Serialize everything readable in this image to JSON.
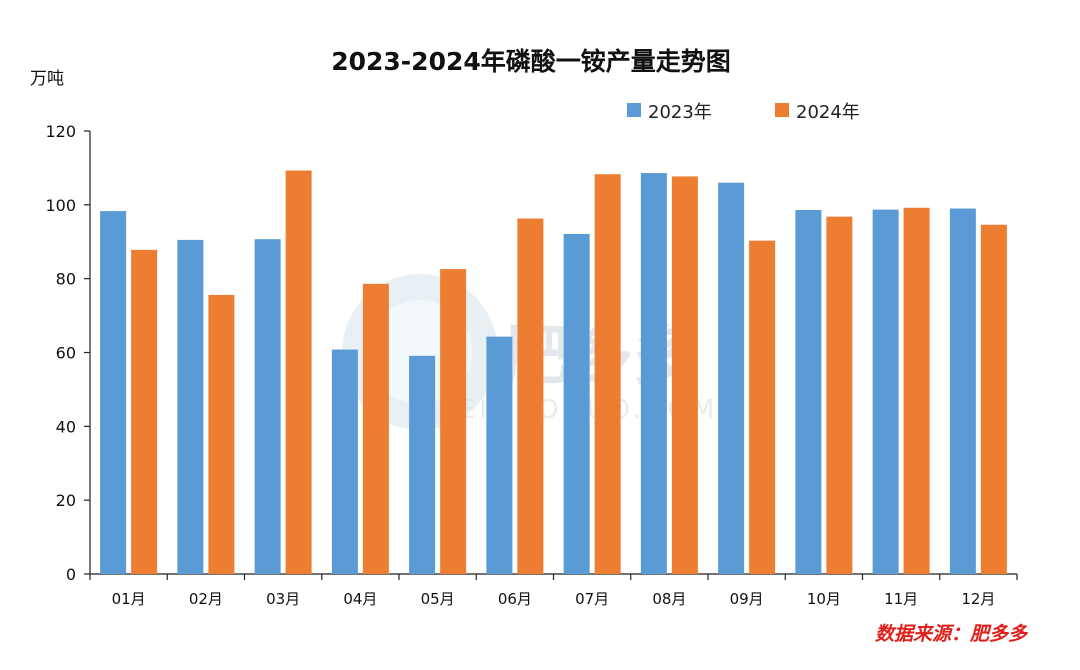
{
  "chart_data": {
    "type": "bar",
    "title": "2023-2024年磷酸一铵产量走势图",
    "ylabel": "万吨",
    "xlabel": "",
    "ylim": [
      0,
      120
    ],
    "yticks": [
      0,
      20,
      40,
      60,
      80,
      100,
      120
    ],
    "categories": [
      "01月",
      "02月",
      "03月",
      "04月",
      "05月",
      "06月",
      "07月",
      "08月",
      "09月",
      "10月",
      "11月",
      "12月"
    ],
    "series": [
      {
        "name": "2023年",
        "color": "#5b9bd5",
        "values": [
          98.3,
          90.5,
          90.7,
          60.8,
          59.1,
          64.3,
          92.1,
          108.6,
          106.0,
          98.6,
          98.7,
          99.0
        ]
      },
      {
        "name": "2024年",
        "color": "#ed7d31",
        "values": [
          87.8,
          75.6,
          109.3,
          78.6,
          82.6,
          96.3,
          108.3,
          107.7,
          90.3,
          96.8,
          99.2,
          94.6
        ]
      }
    ],
    "legend_position": "top-right",
    "grid": false
  },
  "source_note": "数据来源：肥多多",
  "watermark": {
    "brand": "肥多多",
    "sub": "FEIDUODUO.COM",
    "icon": "fdd-logo-icon"
  }
}
